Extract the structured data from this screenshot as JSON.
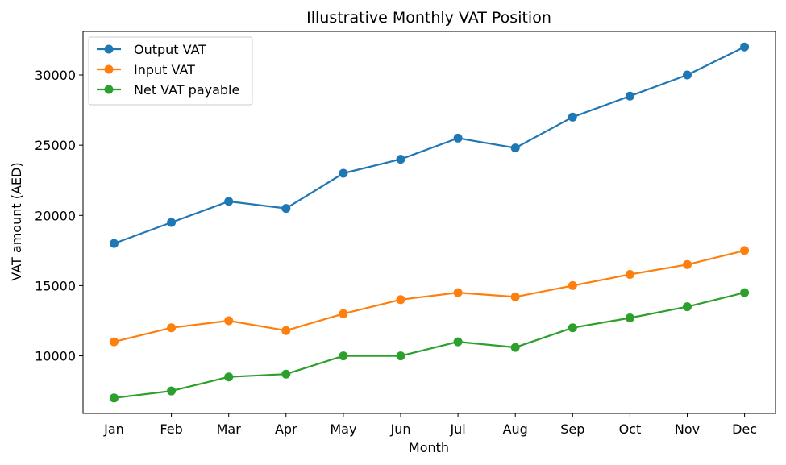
{
  "chart_data": {
    "type": "line",
    "title": "Illustrative Monthly VAT Position",
    "xlabel": "Month",
    "ylabel": "VAT amount (AED)",
    "categories": [
      "Jan",
      "Feb",
      "Mar",
      "Apr",
      "May",
      "Jun",
      "Jul",
      "Aug",
      "Sep",
      "Oct",
      "Nov",
      "Dec"
    ],
    "ylim": [
      5900,
      33100
    ],
    "yticks": [
      10000,
      15000,
      20000,
      25000,
      30000
    ],
    "grid": false,
    "legend_position": "top-left",
    "series": [
      {
        "name": "Output VAT",
        "color": "#1f77b4",
        "marker": "circle",
        "values": [
          18000,
          19500,
          21000,
          20500,
          23000,
          24000,
          25500,
          24800,
          27000,
          28500,
          30000,
          32000
        ]
      },
      {
        "name": "Input VAT",
        "color": "#ff7f0e",
        "marker": "circle",
        "values": [
          11000,
          12000,
          12500,
          11800,
          13000,
          14000,
          14500,
          14200,
          15000,
          15800,
          16500,
          17500
        ]
      },
      {
        "name": "Net VAT payable",
        "color": "#2ca02c",
        "marker": "circle",
        "values": [
          7000,
          7500,
          8500,
          8700,
          10000,
          10000,
          11000,
          10600,
          12000,
          12700,
          13500,
          14500
        ]
      }
    ]
  }
}
